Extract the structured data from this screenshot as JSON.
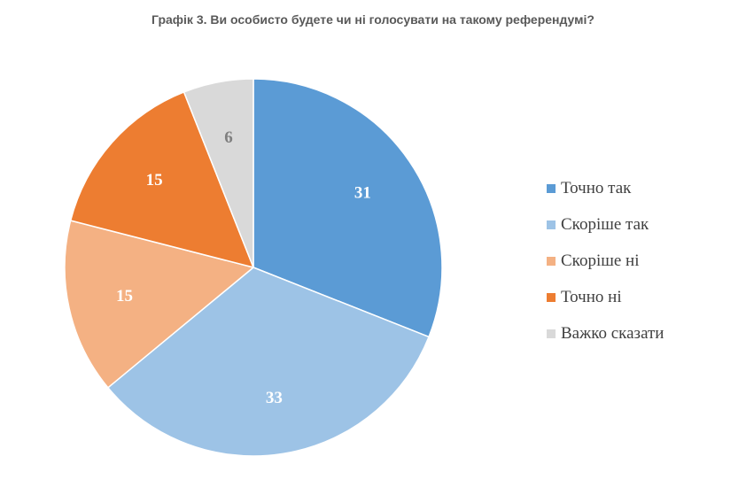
{
  "title": "Графік 3. Ви особисто будете чи ні голосувати на такому референдумі?",
  "chart_data": {
    "type": "pie",
    "title": "Графік 3. Ви особисто будете чи ні голосувати на такому референдумі?",
    "categories": [
      "Точно так",
      "Скоріше так",
      "Скоріше ні",
      "Точно ні",
      "Важко сказати"
    ],
    "values": [
      31,
      33,
      15,
      15,
      6
    ],
    "colors": [
      "#5b9bd5",
      "#9dc3e6",
      "#f4b183",
      "#ed7d31",
      "#d9d9d9"
    ],
    "label_colors": [
      "#ffffff",
      "#ffffff",
      "#ffffff",
      "#ffffff",
      "#7f7f7f"
    ],
    "start_angle": "12 o'clock",
    "direction": "clockwise",
    "legend_position": "right"
  },
  "legend": {
    "items": [
      {
        "label": "Точно так",
        "color": "#5b9bd5"
      },
      {
        "label": "Скоріше так",
        "color": "#9dc3e6"
      },
      {
        "label": "Скоріше ні",
        "color": "#f4b183"
      },
      {
        "label": "Точно ні",
        "color": "#ed7d31"
      },
      {
        "label": "Важко сказати",
        "color": "#d9d9d9"
      }
    ]
  }
}
